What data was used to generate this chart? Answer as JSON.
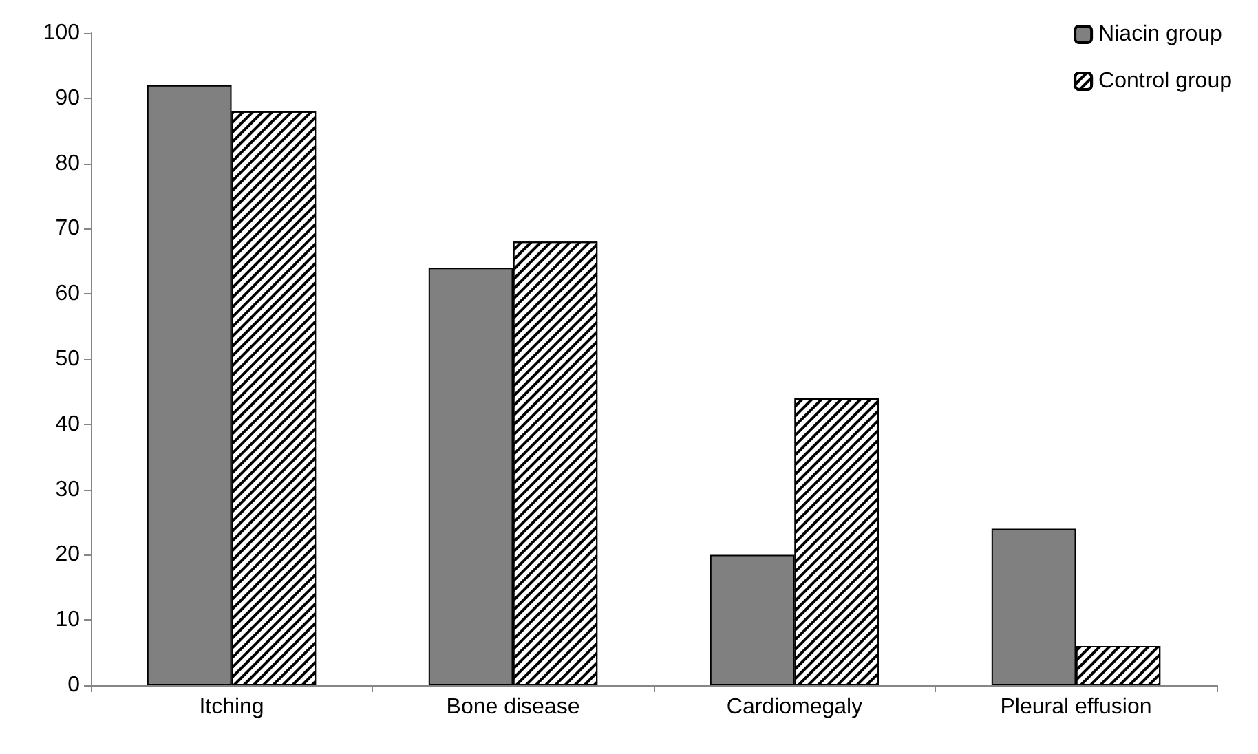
{
  "chart_data": {
    "type": "bar",
    "categories": [
      "Itching",
      "Bone disease",
      "Cardiomegaly",
      "Pleural effusion"
    ],
    "series": [
      {
        "name": "Niacin group",
        "color": "#808080",
        "values": [
          92,
          64,
          20,
          24
        ]
      },
      {
        "name": "Control group",
        "color": "#ffffff",
        "values": [
          88,
          68,
          44,
          6
        ]
      }
    ],
    "ylim": [
      0,
      100
    ],
    "yticks": [
      0,
      10,
      20,
      30,
      40,
      50,
      60,
      70,
      80,
      90,
      100
    ],
    "grid": false,
    "legend": "top right"
  }
}
